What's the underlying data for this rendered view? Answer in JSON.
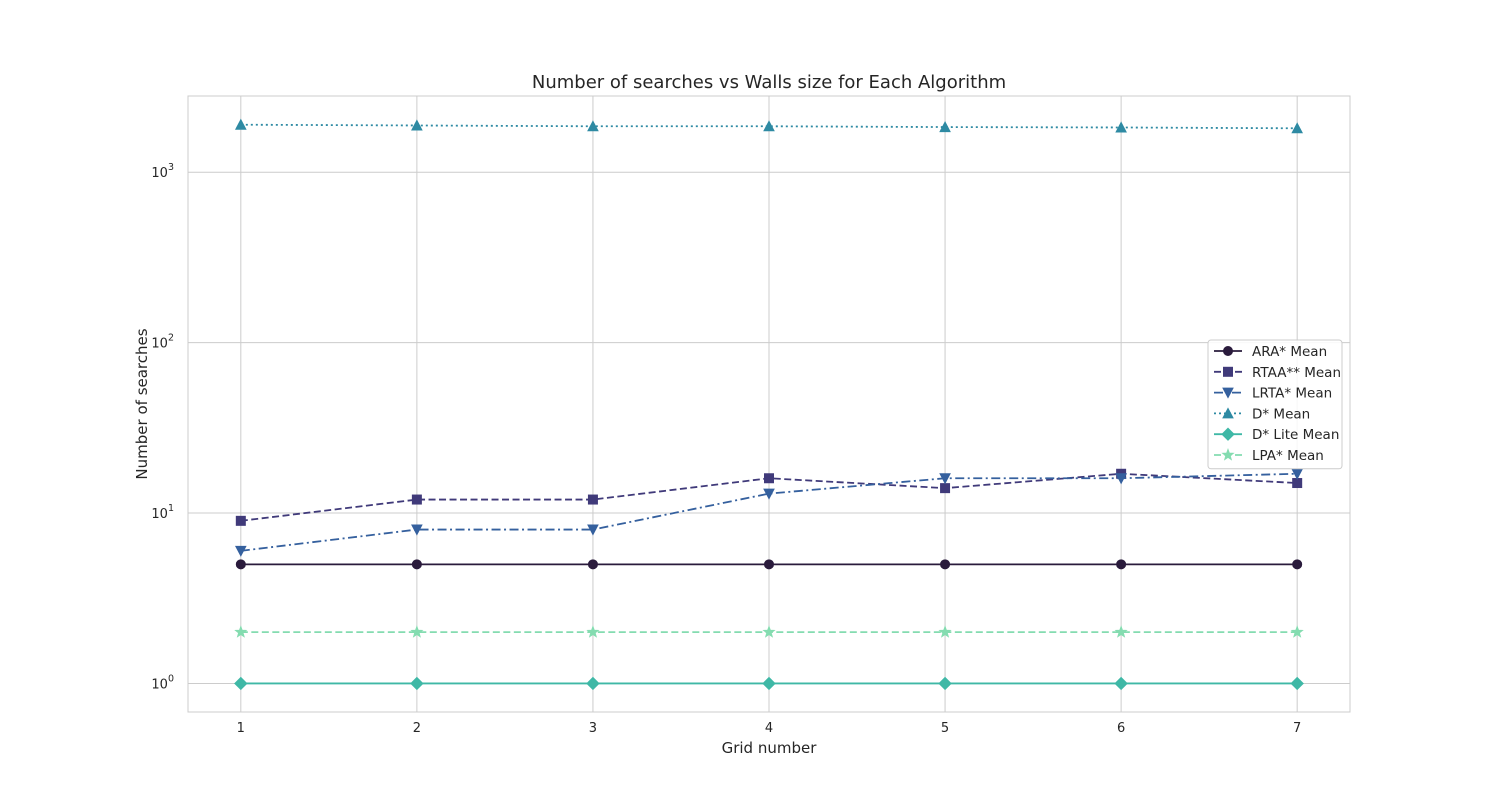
{
  "chart_data": {
    "type": "line",
    "title": "Number of searches vs Walls size for Each Algorithm",
    "xlabel": "Grid number",
    "ylabel": "Number of searches",
    "x": [
      1,
      2,
      3,
      4,
      5,
      6,
      7
    ],
    "xlim": [
      0.7,
      7.3
    ],
    "yscale": "log",
    "ylim": [
      0.68,
      2800
    ],
    "yticks": [
      1,
      10,
      100,
      1000
    ],
    "ytick_labels": [
      {
        "base": "10",
        "exp": "0"
      },
      {
        "base": "10",
        "exp": "1"
      },
      {
        "base": "10",
        "exp": "2"
      },
      {
        "base": "10",
        "exp": "3"
      }
    ],
    "grid": true,
    "legend_position": "center-right",
    "series": [
      {
        "name": "ARA* Mean",
        "values": [
          5,
          5,
          5,
          5,
          5,
          5,
          5
        ],
        "color": "#2a1b3c",
        "dash": "solid",
        "marker": "circle"
      },
      {
        "name": "RTAA** Mean",
        "values": [
          9,
          12,
          12,
          16,
          14,
          17,
          15
        ],
        "color": "#403a7a",
        "dash": "dashed",
        "marker": "square"
      },
      {
        "name": "LRTA* Mean",
        "values": [
          6,
          8,
          8,
          13,
          16,
          16,
          17
        ],
        "color": "#35609e",
        "dash": "dashdot",
        "marker": "triangle-down"
      },
      {
        "name": "D* Mean",
        "values": [
          1900,
          1880,
          1860,
          1860,
          1840,
          1830,
          1810
        ],
        "color": "#2e8aa3",
        "dash": "dotted",
        "marker": "triangle-up"
      },
      {
        "name": "D* Lite Mean",
        "values": [
          1,
          1,
          1,
          1,
          1,
          1,
          1
        ],
        "color": "#3fb8a6",
        "dash": "solid",
        "marker": "diamond"
      },
      {
        "name": "LPA* Mean",
        "values": [
          2,
          2,
          2,
          2,
          2,
          2,
          2
        ],
        "color": "#84dcb0",
        "dash": "dashed",
        "marker": "star"
      }
    ]
  }
}
